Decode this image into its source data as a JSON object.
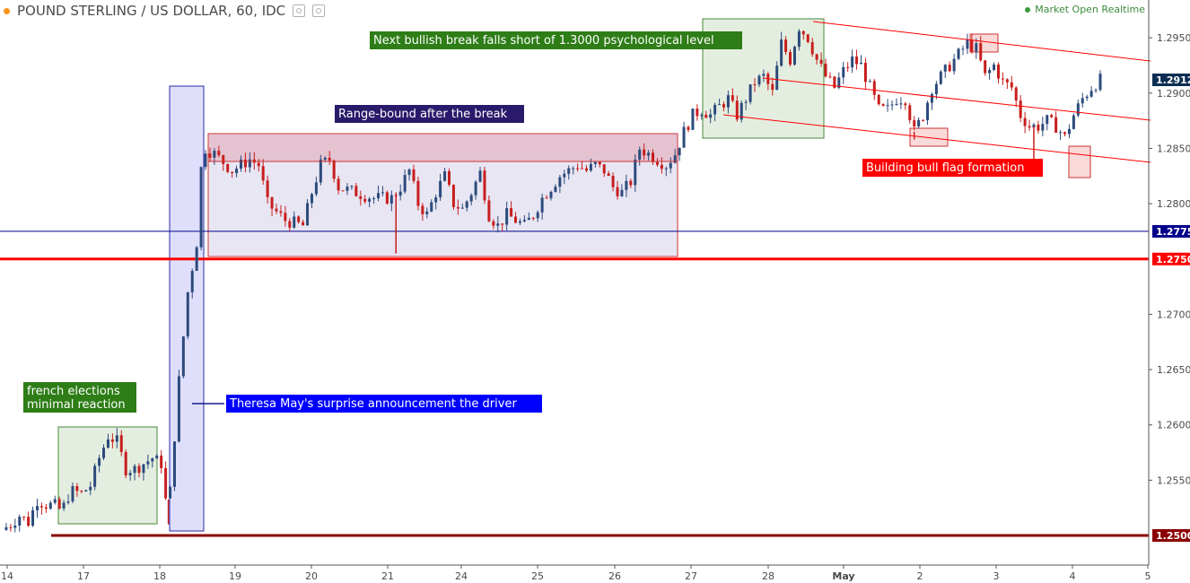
{
  "header": {
    "symbol": "POUND STERLING / US DOLLAR, 60, IDC",
    "status": "Market Open Realtime"
  },
  "colors": {
    "up": "#2c4b7c",
    "down": "#c81e1e",
    "level_red": "#ff0000",
    "level_dark": "#8b0000",
    "level_blue": "#00008b",
    "label_green": "#2e7d17",
    "label_blue": "#0000ff",
    "label_navy": "#2a1a6b",
    "label_red": "#ff0000",
    "last_price": "#0d2e52"
  },
  "chart_data": {
    "type": "candlestick",
    "title": "POUND STERLING / US DOLLAR, 60, IDC",
    "x_ticks": [
      "14",
      "17",
      "18",
      "19",
      "20",
      "21",
      "24",
      "25",
      "26",
      "27",
      "28",
      "May",
      "2",
      "3",
      "4",
      "5"
    ],
    "y_ticks": [
      "1.2950",
      "1.2900",
      "1.2850",
      "1.2800",
      "1.2700",
      "1.2650",
      "1.2600",
      "1.2550"
    ],
    "ylim": [
      1.2475,
      1.299
    ],
    "grid": false,
    "price_labels": [
      {
        "value": 1.2912,
        "label": "1.2912",
        "style": "last"
      },
      {
        "value": 1.2775,
        "label": "1.2775",
        "style": "blue"
      },
      {
        "value": 1.275,
        "label": "1.2750",
        "style": "red"
      },
      {
        "value": 1.25,
        "label": "1.2500",
        "style": "dark"
      }
    ],
    "levels": [
      {
        "value": 1.2775,
        "style": "blue"
      },
      {
        "value": 1.275,
        "style": "red"
      },
      {
        "value": 1.25,
        "style": "dark"
      }
    ],
    "price_path": [
      [
        0,
        1.2505
      ],
      [
        1,
        1.251
      ],
      [
        2,
        1.2518
      ],
      [
        3,
        1.2512
      ],
      [
        4,
        1.2532
      ],
      [
        5,
        1.2528
      ],
      [
        6,
        1.2527
      ],
      [
        6.8,
        1.2522
      ],
      [
        7.4,
        1.2535
      ],
      [
        8,
        1.254
      ],
      [
        9,
        1.2538
      ],
      [
        10,
        1.2545
      ],
      [
        11,
        1.257
      ],
      [
        12,
        1.259
      ],
      [
        13,
        1.2585
      ],
      [
        14,
        1.256
      ],
      [
        15,
        1.256
      ],
      [
        16,
        1.2565
      ],
      [
        17,
        1.257
      ],
      [
        18,
        1.2565
      ],
      [
        18.6,
        1.2525
      ],
      [
        19,
        1.254
      ],
      [
        20,
        1.264
      ],
      [
        21,
        1.272
      ],
      [
        22,
        1.2765
      ],
      [
        22.6,
        1.2845
      ],
      [
        23,
        1.285
      ],
      [
        24,
        1.2845
      ],
      [
        26,
        1.283
      ],
      [
        28,
        1.284
      ],
      [
        29,
        1.2835
      ],
      [
        30,
        1.28
      ],
      [
        32,
        1.2785
      ],
      [
        34,
        1.278
      ],
      [
        35,
        1.281
      ],
      [
        36,
        1.2835
      ],
      [
        37,
        1.284
      ],
      [
        38,
        1.2815
      ],
      [
        40,
        1.281
      ],
      [
        42,
        1.2805
      ],
      [
        44,
        1.2805
      ],
      [
        45,
        1.2815
      ],
      [
        46,
        1.283
      ],
      [
        47,
        1.28
      ],
      [
        48,
        1.279
      ],
      [
        49,
        1.281
      ],
      [
        50,
        1.2825
      ],
      [
        51,
        1.28
      ],
      [
        52,
        1.2795
      ],
      [
        53,
        1.281
      ],
      [
        54,
        1.2828
      ],
      [
        55,
        1.279
      ],
      [
        56,
        1.278
      ],
      [
        57,
        1.279
      ],
      [
        58,
        1.2785
      ],
      [
        59,
        1.278
      ],
      [
        60,
        1.279
      ],
      [
        61,
        1.2805
      ],
      [
        62,
        1.2815
      ],
      [
        63,
        1.2825
      ],
      [
        64,
        1.283
      ],
      [
        65,
        1.2835
      ],
      [
        66,
        1.283
      ],
      [
        67,
        1.2835
      ],
      [
        68,
        1.283
      ],
      [
        69,
        1.2815
      ],
      [
        70,
        1.281
      ],
      [
        71,
        1.282
      ],
      [
        72,
        1.285
      ],
      [
        73,
        1.2845
      ],
      [
        74,
        1.284
      ],
      [
        75,
        1.2835
      ],
      [
        76,
        1.2845
      ],
      [
        77,
        1.2865
      ],
      [
        78,
        1.288
      ],
      [
        79,
        1.2885
      ],
      [
        80,
        1.288
      ],
      [
        81,
        1.2888
      ],
      [
        82,
        1.2895
      ],
      [
        83,
        1.288
      ],
      [
        84,
        1.2895
      ],
      [
        85,
        1.291
      ],
      [
        86,
        1.2915
      ],
      [
        87,
        1.29
      ],
      [
        88,
        1.2945
      ],
      [
        89,
        1.293
      ],
      [
        90,
        1.296
      ],
      [
        91,
        1.295
      ],
      [
        92,
        1.293
      ],
      [
        93,
        1.2915
      ],
      [
        94,
        1.2905
      ],
      [
        95,
        1.292
      ],
      [
        96,
        1.293
      ],
      [
        97,
        1.2925
      ],
      [
        98,
        1.2905
      ],
      [
        99,
        1.2885
      ],
      [
        100,
        1.2885
      ],
      [
        101,
        1.2895
      ],
      [
        102,
        1.2895
      ],
      [
        103,
        1.2865
      ],
      [
        104,
        1.288
      ],
      [
        105,
        1.2905
      ],
      [
        106,
        1.2915
      ],
      [
        107,
        1.2925
      ],
      [
        108,
        1.2935
      ],
      [
        109,
        1.2945
      ],
      [
        110,
        1.294
      ],
      [
        111,
        1.2915
      ],
      [
        112,
        1.2925
      ],
      [
        113,
        1.291
      ],
      [
        114,
        1.2905
      ],
      [
        115,
        1.288
      ],
      [
        116,
        1.287
      ],
      [
        117,
        1.287
      ],
      [
        118,
        1.2875
      ],
      [
        119,
        1.287
      ],
      [
        120,
        1.286
      ],
      [
        121,
        1.288
      ],
      [
        122,
        1.2895
      ],
      [
        123,
        1.2905
      ],
      [
        124,
        1.2912
      ]
    ],
    "spikes": [
      {
        "x": 18.8,
        "low": 1.251
      },
      {
        "x": 44.5,
        "low": 1.2755
      },
      {
        "x": 103,
        "low": 1.2858
      },
      {
        "x": 116.5,
        "low": 1.284
      }
    ],
    "annotations": {
      "bullish_break": "Next bullish break falls short of 1.3000 psychological level",
      "range": "Range-bound after the break",
      "bull_flag": "Building bull flag formation",
      "french_line1": "french elections",
      "french_line2": "minimal reaction",
      "theresa": "Theresa May's surprise announcement the driver"
    }
  }
}
